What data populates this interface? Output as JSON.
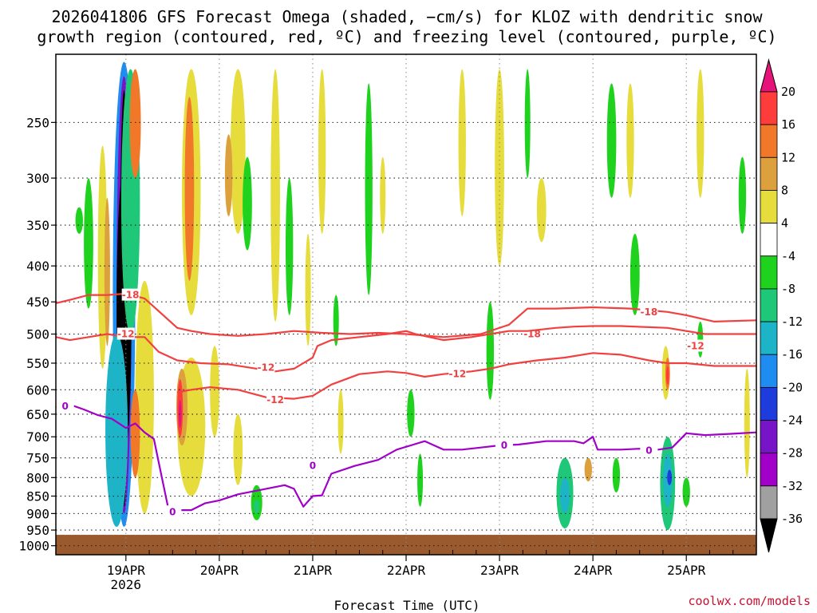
{
  "chart_data": {
    "type": "time-height cross-section",
    "title_line1": "2026041806 GFS Forecast Omega (shaded, −cm/s) for KLOZ with dendritic snow",
    "title_line2": "growth region (contoured, red, ºC) and freezing level (contoured, purple, ºC)",
    "xlabel": "Forecast Time (UTC)",
    "credit": "coolwx.com/models",
    "x_range_days": [
      18.25,
      25.75
    ],
    "x_ticks": [
      {
        "label": "19APR",
        "sub": "2026",
        "day": 19
      },
      {
        "label": "20APR",
        "sub": "",
        "day": 20
      },
      {
        "label": "21APR",
        "sub": "",
        "day": 21
      },
      {
        "label": "22APR",
        "sub": "",
        "day": 22
      },
      {
        "label": "23APR",
        "sub": "",
        "day": 23
      },
      {
        "label": "24APR",
        "sub": "",
        "day": 24
      },
      {
        "label": "25APR",
        "sub": "",
        "day": 25
      }
    ],
    "y_levels_hpa": [
      250,
      300,
      350,
      400,
      450,
      500,
      550,
      600,
      650,
      700,
      750,
      800,
      850,
      900,
      950,
      1000
    ],
    "y_range_hpa": [
      200,
      1030
    ],
    "ground_hpa": 965,
    "colorbar": {
      "labels": [
        "20",
        "16",
        "12",
        "8",
        "4",
        "-4",
        "-8",
        "-12",
        "-16",
        "-20",
        "-24",
        "-28",
        "-32",
        "-36"
      ],
      "bands": [
        {
          "min": 16,
          "max": 20,
          "color": "#ff3c3c"
        },
        {
          "min": 12,
          "max": 16,
          "color": "#f07828"
        },
        {
          "min": 8,
          "max": 12,
          "color": "#dca03c"
        },
        {
          "min": 4,
          "max": 8,
          "color": "#e6dc3c"
        },
        {
          "min": -4,
          "max": 4,
          "color": "#ffffff"
        },
        {
          "min": -8,
          "max": -4,
          "color": "#1ed21e"
        },
        {
          "min": -12,
          "max": -8,
          "color": "#1ec878"
        },
        {
          "min": -16,
          "max": -12,
          "color": "#1eb4c8"
        },
        {
          "min": -20,
          "max": -16,
          "color": "#1e8cf0"
        },
        {
          "min": -24,
          "max": -20,
          "color": "#1e3cdc"
        },
        {
          "min": -28,
          "max": -24,
          "color": "#7814c8"
        },
        {
          "min": -32,
          "max": -28,
          "color": "#a000c8"
        },
        {
          "min": -36,
          "max": -32,
          "color": "#a0a0a0"
        }
      ],
      "top_arrow_color": "#e6147a",
      "bottom_arrow_color": "#000000",
      "ground_color": "#9b5a2d"
    },
    "contours": [
      {
        "name": "minus18-upper",
        "label": "-18",
        "color": "#f04040",
        "points": [
          [
            18.25,
            452
          ],
          [
            18.4,
            447
          ],
          [
            18.6,
            440
          ],
          [
            18.8,
            440
          ],
          [
            19.0,
            438
          ],
          [
            19.2,
            445
          ],
          [
            19.4,
            470
          ],
          [
            19.55,
            490
          ],
          [
            19.7,
            495
          ],
          [
            19.9,
            500
          ],
          [
            20.2,
            503
          ],
          [
            20.5,
            500
          ],
          [
            20.8,
            495
          ],
          [
            21.1,
            498
          ],
          [
            21.4,
            500
          ],
          [
            21.7,
            498
          ],
          [
            22.0,
            500
          ],
          [
            22.4,
            505
          ],
          [
            22.8,
            500
          ],
          [
            23.1,
            485
          ],
          [
            23.3,
            460
          ],
          [
            23.6,
            460
          ],
          [
            24.0,
            458
          ],
          [
            24.4,
            460
          ],
          [
            24.8,
            465
          ],
          [
            25.0,
            470
          ],
          [
            25.3,
            480
          ],
          [
            25.75,
            478
          ]
        ],
        "labels": [
          [
            19.05,
            440
          ],
          [
            23.35,
            500
          ],
          [
            24.6,
            465
          ]
        ]
      },
      {
        "name": "minus12-upper",
        "label": "-12",
        "color": "#f04040",
        "points": [
          [
            18.25,
            505
          ],
          [
            18.4,
            510
          ],
          [
            18.6,
            505
          ],
          [
            18.8,
            500
          ],
          [
            19.0,
            505
          ],
          [
            19.2,
            505
          ],
          [
            19.35,
            530
          ],
          [
            19.55,
            545
          ],
          [
            19.8,
            550
          ],
          [
            20.1,
            552
          ],
          [
            20.4,
            560
          ],
          [
            20.6,
            565
          ],
          [
            20.8,
            560
          ],
          [
            21.0,
            540
          ],
          [
            21.05,
            520
          ],
          [
            21.2,
            510
          ],
          [
            21.5,
            505
          ],
          [
            21.8,
            500
          ],
          [
            22.0,
            495
          ],
          [
            22.1,
            500
          ],
          [
            22.4,
            510
          ],
          [
            22.7,
            505
          ],
          [
            22.9,
            500
          ],
          [
            23.1,
            495
          ],
          [
            23.3,
            495
          ],
          [
            23.6,
            490
          ],
          [
            23.8,
            488
          ],
          [
            24.0,
            487
          ],
          [
            24.3,
            487
          ],
          [
            24.8,
            490
          ],
          [
            25.0,
            495
          ],
          [
            25.2,
            500
          ],
          [
            25.4,
            500
          ],
          [
            25.75,
            500
          ]
        ],
        "labels": [
          [
            19.0,
            500
          ],
          [
            20.5,
            558
          ],
          [
            25.1,
            520
          ]
        ]
      },
      {
        "name": "minus12-lower",
        "label": "-12",
        "color": "#f04040",
        "points": [
          [
            19.55,
            605
          ],
          [
            19.7,
            600
          ],
          [
            19.9,
            595
          ],
          [
            20.2,
            600
          ],
          [
            20.5,
            615
          ],
          [
            20.8,
            618
          ],
          [
            21.0,
            612
          ],
          [
            21.2,
            590
          ],
          [
            21.5,
            570
          ],
          [
            21.8,
            565
          ],
          [
            22.0,
            568
          ],
          [
            22.2,
            575
          ],
          [
            22.4,
            570
          ],
          [
            22.7,
            565
          ],
          [
            22.9,
            560
          ],
          [
            23.1,
            552
          ],
          [
            23.4,
            545
          ],
          [
            23.7,
            540
          ],
          [
            24.0,
            532
          ],
          [
            24.3,
            535
          ],
          [
            24.6,
            545
          ],
          [
            24.8,
            550
          ],
          [
            25.0,
            550
          ],
          [
            25.3,
            555
          ],
          [
            25.75,
            555
          ]
        ],
        "labels": [
          [
            20.6,
            620
          ],
          [
            22.55,
            570
          ]
        ]
      },
      {
        "name": "freezing-level",
        "label": "0",
        "color": "#a000c8",
        "points": [
          [
            18.25,
            635
          ],
          [
            18.4,
            630
          ],
          [
            18.55,
            640
          ],
          [
            18.7,
            652
          ],
          [
            18.85,
            660
          ],
          [
            19.0,
            680
          ],
          [
            19.1,
            670
          ],
          [
            19.2,
            690
          ],
          [
            19.3,
            705
          ],
          [
            19.35,
            760
          ],
          [
            19.45,
            880
          ],
          [
            19.55,
            890
          ],
          [
            19.7,
            890
          ],
          [
            19.85,
            870
          ],
          [
            20.0,
            862
          ],
          [
            20.2,
            845
          ],
          [
            20.5,
            830
          ],
          [
            20.7,
            820
          ],
          [
            20.8,
            830
          ],
          [
            20.9,
            880
          ],
          [
            21.0,
            850
          ],
          [
            21.1,
            848
          ],
          [
            21.2,
            790
          ],
          [
            21.45,
            770
          ],
          [
            21.7,
            755
          ],
          [
            21.9,
            730
          ],
          [
            22.05,
            720
          ],
          [
            22.2,
            710
          ],
          [
            22.4,
            730
          ],
          [
            22.6,
            730
          ],
          [
            22.8,
            725
          ],
          [
            23.0,
            720
          ],
          [
            23.2,
            718
          ],
          [
            23.5,
            710
          ],
          [
            23.8,
            710
          ],
          [
            23.9,
            715
          ],
          [
            24.0,
            700
          ],
          [
            24.05,
            730
          ],
          [
            24.3,
            730
          ],
          [
            24.5,
            728
          ],
          [
            24.7,
            730
          ],
          [
            24.85,
            725
          ],
          [
            25.0,
            692
          ],
          [
            25.2,
            696
          ],
          [
            25.5,
            693
          ],
          [
            25.75,
            690
          ]
        ],
        "labels": [
          [
            18.35,
            633
          ],
          [
            19.5,
            895
          ],
          [
            21.0,
            770
          ],
          [
            23.05,
            720
          ],
          [
            24.6,
            732
          ]
        ]
      }
    ],
    "shading_blobs": [
      {
        "day": 18.98,
        "p_top": 205,
        "p_bot": 940,
        "w": 0.12,
        "color": "#1e8cf0"
      },
      {
        "day": 18.98,
        "p_top": 215,
        "p_bot": 900,
        "w": 0.08,
        "color": "#7814c8"
      },
      {
        "day": 18.98,
        "p_top": 225,
        "p_bot": 880,
        "w": 0.045,
        "color": "#000000"
      },
      {
        "day": 18.98,
        "p_top": 290,
        "p_bot": 750,
        "w": 0.08,
        "color": "#000000"
      },
      {
        "day": 18.9,
        "p_top": 500,
        "p_bot": 940,
        "w": 0.12,
        "color": "#1eb4c8"
      },
      {
        "day": 19.05,
        "p_top": 210,
        "p_bot": 500,
        "w": 0.1,
        "color": "#1ec878"
      },
      {
        "day": 19.2,
        "p_top": 420,
        "p_bot": 900,
        "w": 0.1,
        "color": "#e6dc3c"
      },
      {
        "day": 19.1,
        "p_top": 600,
        "p_bot": 800,
        "w": 0.05,
        "color": "#f07828"
      },
      {
        "day": 18.75,
        "p_top": 270,
        "p_bot": 560,
        "w": 0.05,
        "color": "#e6dc3c"
      },
      {
        "day": 18.8,
        "p_top": 320,
        "p_bot": 520,
        "w": 0.03,
        "color": "#dca03c"
      },
      {
        "day": 18.6,
        "p_top": 300,
        "p_bot": 460,
        "w": 0.05,
        "color": "#1ed21e"
      },
      {
        "day": 18.5,
        "p_top": 330,
        "p_bot": 360,
        "w": 0.04,
        "color": "#1ed21e"
      },
      {
        "day": 19.1,
        "p_top": 210,
        "p_bot": 300,
        "w": 0.06,
        "color": "#f07828"
      },
      {
        "day": 19.7,
        "p_top": 540,
        "p_bot": 850,
        "w": 0.15,
        "color": "#e6dc3c"
      },
      {
        "day": 19.6,
        "p_top": 560,
        "p_bot": 720,
        "w": 0.06,
        "color": "#dca03c"
      },
      {
        "day": 19.58,
        "p_top": 580,
        "p_bot": 700,
        "w": 0.03,
        "color": "#ff3c3c"
      },
      {
        "day": 19.58,
        "p_top": 620,
        "p_bot": 680,
        "w": 0.015,
        "color": "#e6147a"
      },
      {
        "day": 19.7,
        "p_top": 210,
        "p_bot": 470,
        "w": 0.1,
        "color": "#e6dc3c"
      },
      {
        "day": 19.68,
        "p_top": 230,
        "p_bot": 420,
        "w": 0.05,
        "color": "#f07828"
      },
      {
        "day": 19.95,
        "p_top": 520,
        "p_bot": 700,
        "w": 0.05,
        "color": "#e6dc3c"
      },
      {
        "day": 20.2,
        "p_top": 210,
        "p_bot": 360,
        "w": 0.08,
        "color": "#e6dc3c"
      },
      {
        "day": 20.1,
        "p_top": 260,
        "p_bot": 340,
        "w": 0.04,
        "color": "#dca03c"
      },
      {
        "day": 20.3,
        "p_top": 280,
        "p_bot": 380,
        "w": 0.05,
        "color": "#1ed21e"
      },
      {
        "day": 20.2,
        "p_top": 650,
        "p_bot": 820,
        "w": 0.05,
        "color": "#e6dc3c"
      },
      {
        "day": 20.4,
        "p_top": 820,
        "p_bot": 920,
        "w": 0.06,
        "color": "#1ed21e"
      },
      {
        "day": 20.4,
        "p_top": 860,
        "p_bot": 900,
        "w": 0.03,
        "color": "#1ec878"
      },
      {
        "day": 20.6,
        "p_top": 210,
        "p_bot": 480,
        "w": 0.05,
        "color": "#e6dc3c"
      },
      {
        "day": 20.75,
        "p_top": 300,
        "p_bot": 470,
        "w": 0.04,
        "color": "#1ed21e"
      },
      {
        "day": 20.95,
        "p_top": 360,
        "p_bot": 520,
        "w": 0.03,
        "color": "#e6dc3c"
      },
      {
        "day": 21.1,
        "p_top": 210,
        "p_bot": 360,
        "w": 0.04,
        "color": "#e6dc3c"
      },
      {
        "day": 21.25,
        "p_top": 440,
        "p_bot": 520,
        "w": 0.03,
        "color": "#1ed21e"
      },
      {
        "day": 21.3,
        "p_top": 600,
        "p_bot": 740,
        "w": 0.03,
        "color": "#e6dc3c"
      },
      {
        "day": 21.6,
        "p_top": 220,
        "p_bot": 440,
        "w": 0.04,
        "color": "#1ed21e"
      },
      {
        "day": 21.75,
        "p_top": 280,
        "p_bot": 360,
        "w": 0.03,
        "color": "#e6dc3c"
      },
      {
        "day": 22.05,
        "p_top": 600,
        "p_bot": 700,
        "w": 0.04,
        "color": "#1ed21e"
      },
      {
        "day": 22.15,
        "p_top": 740,
        "p_bot": 880,
        "w": 0.03,
        "color": "#1ed21e"
      },
      {
        "day": 22.6,
        "p_top": 210,
        "p_bot": 340,
        "w": 0.04,
        "color": "#e6dc3c"
      },
      {
        "day": 22.9,
        "p_top": 450,
        "p_bot": 620,
        "w": 0.04,
        "color": "#1ed21e"
      },
      {
        "day": 23.0,
        "p_top": 210,
        "p_bot": 400,
        "w": 0.05,
        "color": "#e6dc3c"
      },
      {
        "day": 23.3,
        "p_top": 210,
        "p_bot": 300,
        "w": 0.03,
        "color": "#1ed21e"
      },
      {
        "day": 23.45,
        "p_top": 300,
        "p_bot": 370,
        "w": 0.05,
        "color": "#e6dc3c"
      },
      {
        "day": 23.7,
        "p_top": 750,
        "p_bot": 945,
        "w": 0.09,
        "color": "#1ec878"
      },
      {
        "day": 23.7,
        "p_top": 800,
        "p_bot": 900,
        "w": 0.05,
        "color": "#1eb4c8"
      },
      {
        "day": 23.95,
        "p_top": 750,
        "p_bot": 810,
        "w": 0.04,
        "color": "#dca03c"
      },
      {
        "day": 24.25,
        "p_top": 750,
        "p_bot": 840,
        "w": 0.04,
        "color": "#1ed21e"
      },
      {
        "day": 24.2,
        "p_top": 220,
        "p_bot": 320,
        "w": 0.05,
        "color": "#1ed21e"
      },
      {
        "day": 24.4,
        "p_top": 220,
        "p_bot": 320,
        "w": 0.04,
        "color": "#e6dc3c"
      },
      {
        "day": 24.45,
        "p_top": 360,
        "p_bot": 470,
        "w": 0.05,
        "color": "#1ed21e"
      },
      {
        "day": 24.8,
        "p_top": 700,
        "p_bot": 950,
        "w": 0.08,
        "color": "#1ec878"
      },
      {
        "day": 24.8,
        "p_top": 740,
        "p_bot": 880,
        "w": 0.05,
        "color": "#1eb4c8"
      },
      {
        "day": 24.82,
        "p_top": 780,
        "p_bot": 820,
        "w": 0.025,
        "color": "#1e3cdc"
      },
      {
        "day": 24.78,
        "p_top": 520,
        "p_bot": 620,
        "w": 0.04,
        "color": "#e6dc3c"
      },
      {
        "day": 24.8,
        "p_top": 540,
        "p_bot": 600,
        "w": 0.025,
        "color": "#f07828"
      },
      {
        "day": 24.8,
        "p_top": 555,
        "p_bot": 590,
        "w": 0.015,
        "color": "#ff3c3c"
      },
      {
        "day": 25.0,
        "p_top": 800,
        "p_bot": 880,
        "w": 0.04,
        "color": "#1ed21e"
      },
      {
        "day": 25.15,
        "p_top": 480,
        "p_bot": 540,
        "w": 0.03,
        "color": "#1ed21e"
      },
      {
        "day": 25.15,
        "p_top": 210,
        "p_bot": 320,
        "w": 0.04,
        "color": "#e6dc3c"
      },
      {
        "day": 25.6,
        "p_top": 280,
        "p_bot": 360,
        "w": 0.04,
        "color": "#1ed21e"
      },
      {
        "day": 25.65,
        "p_top": 560,
        "p_bot": 800,
        "w": 0.03,
        "color": "#e6dc3c"
      }
    ]
  }
}
